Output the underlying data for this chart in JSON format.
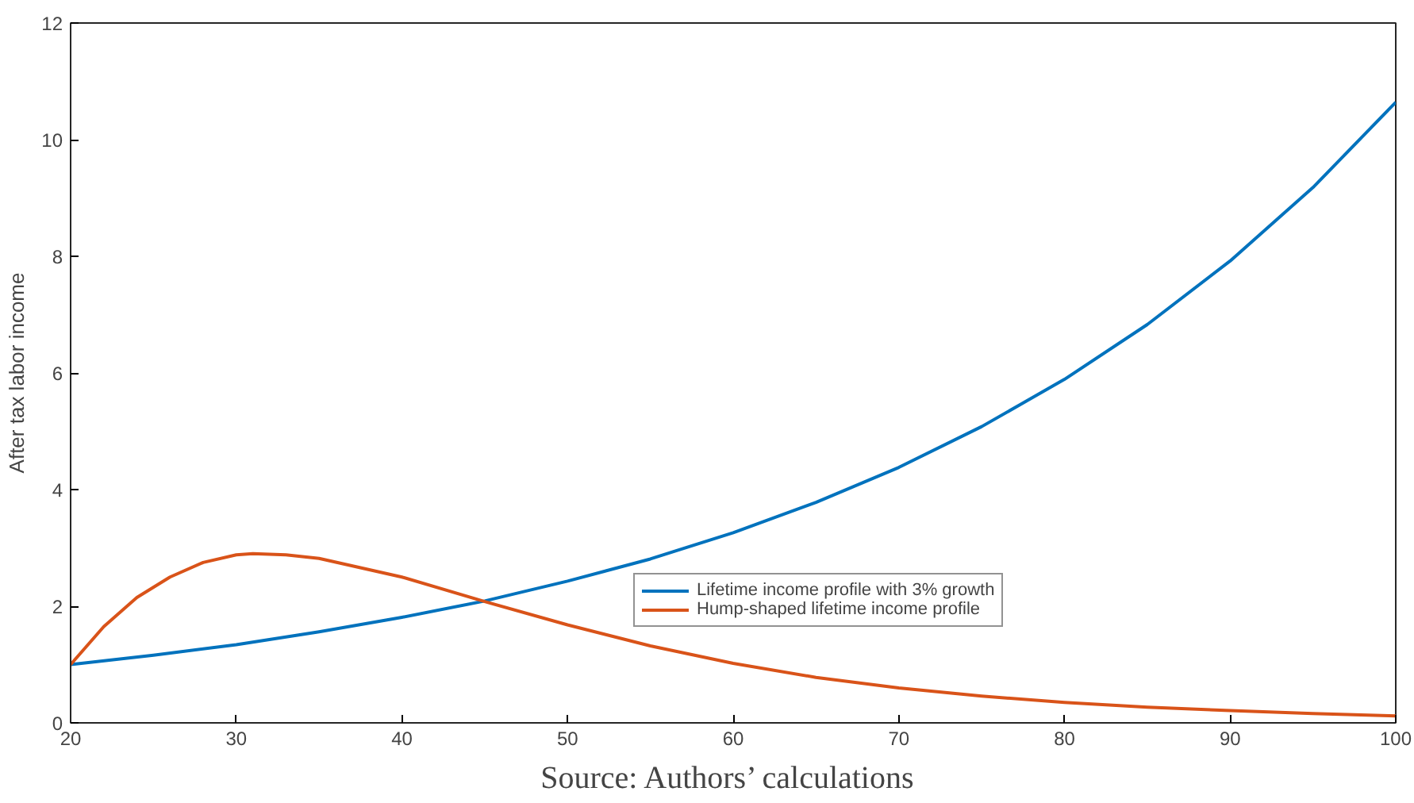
{
  "chart_data": {
    "type": "line",
    "ylabel": "After tax labor income",
    "annotations": [
      "Source:  Authors’ calculations"
    ],
    "xlim": [
      20,
      100
    ],
    "xticks": [
      20,
      30,
      40,
      50,
      60,
      70,
      80,
      90,
      100
    ],
    "ylim": [
      0,
      12
    ],
    "yticks": [
      0,
      2,
      4,
      6,
      8,
      10,
      12
    ],
    "grid": false,
    "legend": "bottom",
    "marker": "none",
    "line_style": "solid",
    "series": [
      {
        "name": "Lifetime income profile with 3% growth",
        "color": "#0072bd",
        "x": [
          20,
          25,
          30,
          35,
          40,
          45,
          50,
          55,
          60,
          65,
          70,
          75,
          80,
          85,
          90,
          95,
          100
        ],
        "values": [
          1.0,
          1.16,
          1.34,
          1.56,
          1.81,
          2.09,
          2.43,
          2.81,
          3.26,
          3.78,
          4.38,
          5.08,
          5.89,
          6.83,
          7.92,
          9.18,
          10.64
        ]
      },
      {
        "name": "Hump-shaped lifetime income profile",
        "color": "#d95319",
        "x": [
          20,
          22,
          24,
          26,
          28,
          30,
          31,
          33,
          35,
          40,
          45,
          50,
          55,
          60,
          65,
          70,
          75,
          80,
          85,
          90,
          95,
          100
        ],
        "values": [
          1.0,
          1.65,
          2.15,
          2.5,
          2.75,
          2.88,
          2.9,
          2.88,
          2.82,
          2.5,
          2.08,
          1.68,
          1.32,
          1.02,
          0.78,
          0.6,
          0.46,
          0.35,
          0.27,
          0.21,
          0.16,
          0.12
        ]
      }
    ]
  }
}
